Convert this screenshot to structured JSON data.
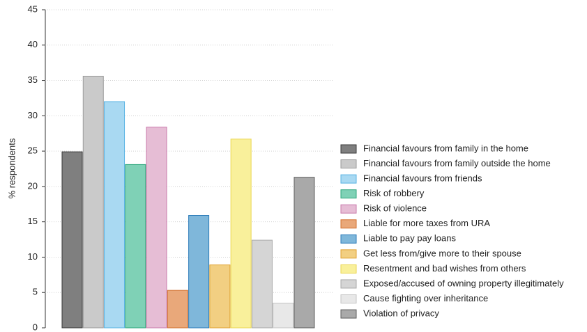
{
  "chart_data": {
    "type": "bar",
    "ylabel": "% respondents",
    "categories": [
      "Financial favours from family in the home",
      "Financial favours from family outside the home",
      "Financial favours from friends",
      "Risk of robbery",
      "Risk of violence",
      "Liable for more taxes from URA",
      "Liable to pay pay loans",
      "Get less from/give more to their spouse",
      "Resentment and bad wishes from others",
      "Exposed/accused of owning property illegitimately",
      "Cause fighting over inheritance",
      "Violation of privacy"
    ],
    "values": [
      24.9,
      35.6,
      32.0,
      23.1,
      28.4,
      5.3,
      15.9,
      8.9,
      26.7,
      12.4,
      3.5,
      21.3
    ],
    "colors": [
      "#7f7f7f",
      "#cacaca",
      "#a9d9f2",
      "#7fd1b6",
      "#e6bdd5",
      "#e9a87a",
      "#7fb7da",
      "#f2cf82",
      "#f9f09b",
      "#d5d5d5",
      "#e8e8e8",
      "#a9a9a9"
    ],
    "edgecolors": [
      "#3a3a3a",
      "#9a9a9a",
      "#58b3e3",
      "#2ea67c",
      "#c97aab",
      "#d2712f",
      "#2b7bb9",
      "#e0a232",
      "#ead652",
      "#a8a8a8",
      "#c4c4c4",
      "#5e5e5e"
    ],
    "ylim": [
      0,
      45
    ],
    "yticks": [
      0,
      5,
      10,
      15,
      20,
      25,
      30,
      35,
      40,
      45
    ],
    "grid": true,
    "legend": "right"
  }
}
